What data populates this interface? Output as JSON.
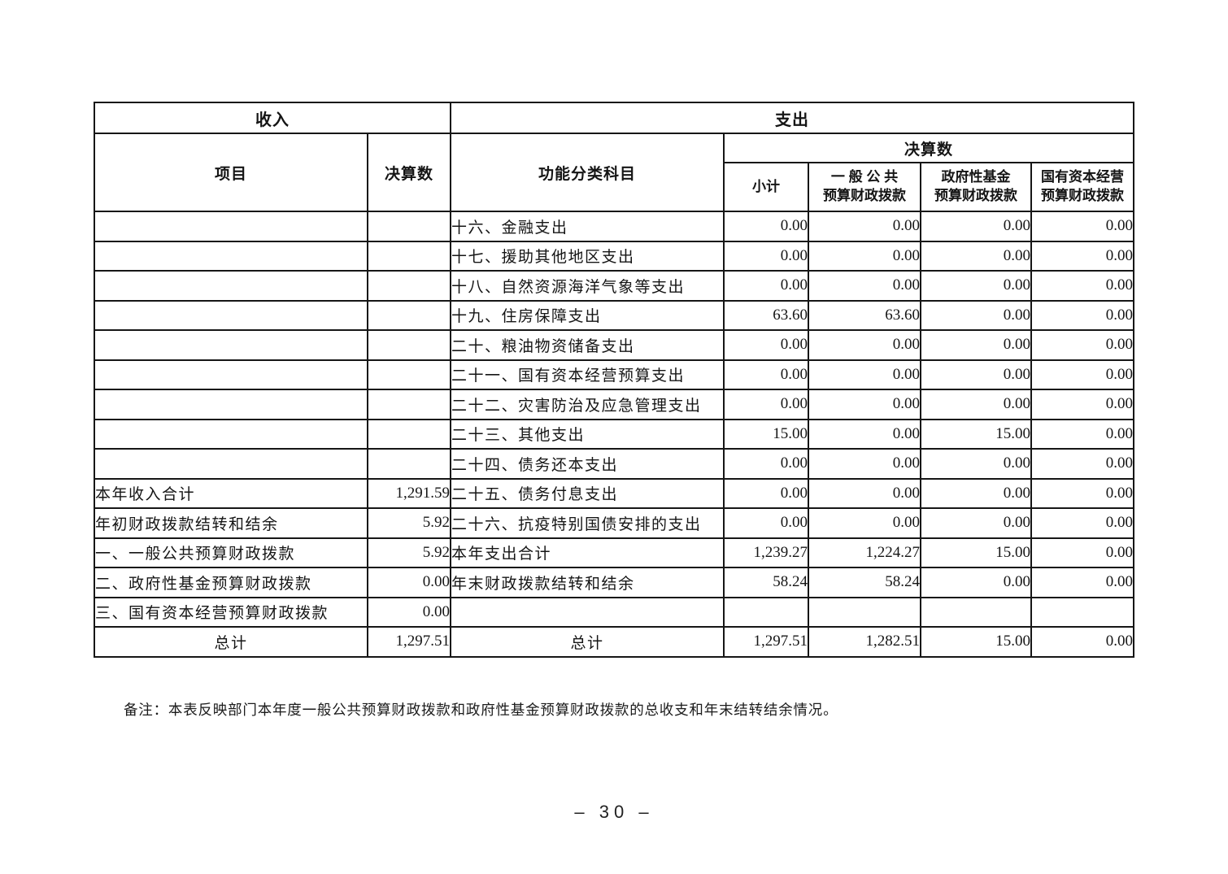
{
  "page": {
    "note": "备注：本表反映部门本年度一般公共预算财政拨款和政府性基金预算财政拨款的总收支和年末结转结余情况。",
    "number": "– 30 –"
  },
  "table": {
    "income_header": "收入",
    "expense_header": "支出",
    "col_item": "项目",
    "col_income_amount": "决算数",
    "col_subject": "功能分类科目",
    "col_amount_group": "决算数",
    "col_subtotal": "小计",
    "col_general_line1": "一 般 公 共",
    "col_general_line2": "预算财政拨款",
    "col_govfund_line1": "政府性基金",
    "col_govfund_line2": "预算财政拨款",
    "col_state_line1": "国有资本经营",
    "col_state_line2": "预算财政拨款",
    "rows": [
      {
        "item": "",
        "amount": "",
        "subject": "十六、金融支出",
        "subtotal": "0.00",
        "general": "0.00",
        "gov_fund": "0.00",
        "state_capital": "0.00"
      },
      {
        "item": "",
        "amount": "",
        "subject": "十七、援助其他地区支出",
        "subtotal": "0.00",
        "general": "0.00",
        "gov_fund": "0.00",
        "state_capital": "0.00"
      },
      {
        "item": "",
        "amount": "",
        "subject": "十八、自然资源海洋气象等支出",
        "subtotal": "0.00",
        "general": "0.00",
        "gov_fund": "0.00",
        "state_capital": "0.00"
      },
      {
        "item": "",
        "amount": "",
        "subject": "十九、住房保障支出",
        "subtotal": "63.60",
        "general": "63.60",
        "gov_fund": "0.00",
        "state_capital": "0.00"
      },
      {
        "item": "",
        "amount": "",
        "subject": "二十、粮油物资储备支出",
        "subtotal": "0.00",
        "general": "0.00",
        "gov_fund": "0.00",
        "state_capital": "0.00"
      },
      {
        "item": "",
        "amount": "",
        "subject": "二十一、国有资本经营预算支出",
        "subtotal": "0.00",
        "general": "0.00",
        "gov_fund": "0.00",
        "state_capital": "0.00"
      },
      {
        "item": "",
        "amount": "",
        "subject": "二十二、灾害防治及应急管理支出",
        "subtotal": "0.00",
        "general": "0.00",
        "gov_fund": "0.00",
        "state_capital": "0.00"
      },
      {
        "item": "",
        "amount": "",
        "subject": "二十三、其他支出",
        "subtotal": "15.00",
        "general": "0.00",
        "gov_fund": "15.00",
        "state_capital": "0.00"
      },
      {
        "item": "",
        "amount": "",
        "subject": "二十四、债务还本支出",
        "subtotal": "0.00",
        "general": "0.00",
        "gov_fund": "0.00",
        "state_capital": "0.00"
      },
      {
        "item": "本年收入合计",
        "amount": "1,291.59",
        "subject": "二十五、债务付息支出",
        "subtotal": "0.00",
        "general": "0.00",
        "gov_fund": "0.00",
        "state_capital": "0.00"
      },
      {
        "item": "年初财政拨款结转和结余",
        "amount": "5.92",
        "subject": "二十六、抗疫特别国债安排的支出",
        "subtotal": "0.00",
        "general": "0.00",
        "gov_fund": "0.00",
        "state_capital": "0.00"
      },
      {
        "item": "一、一般公共预算财政拨款",
        "amount": "5.92",
        "subject": "本年支出合计",
        "subtotal": "1,239.27",
        "general": "1,224.27",
        "gov_fund": "15.00",
        "state_capital": "0.00"
      },
      {
        "item": "二、政府性基金预算财政拨款",
        "amount": "0.00",
        "subject": "年末财政拨款结转和结余",
        "subtotal": "58.24",
        "general": "58.24",
        "gov_fund": "0.00",
        "state_capital": "0.00"
      },
      {
        "item": "三、国有资本经营预算财政拨款",
        "amount": "0.00",
        "subject": "",
        "subtotal": "",
        "general": "",
        "gov_fund": "",
        "state_capital": ""
      },
      {
        "item": "总计",
        "amount": "1,297.51",
        "subject": "总计",
        "subtotal": "1,297.51",
        "general": "1,282.51",
        "gov_fund": "15.00",
        "state_capital": "0.00"
      }
    ]
  }
}
